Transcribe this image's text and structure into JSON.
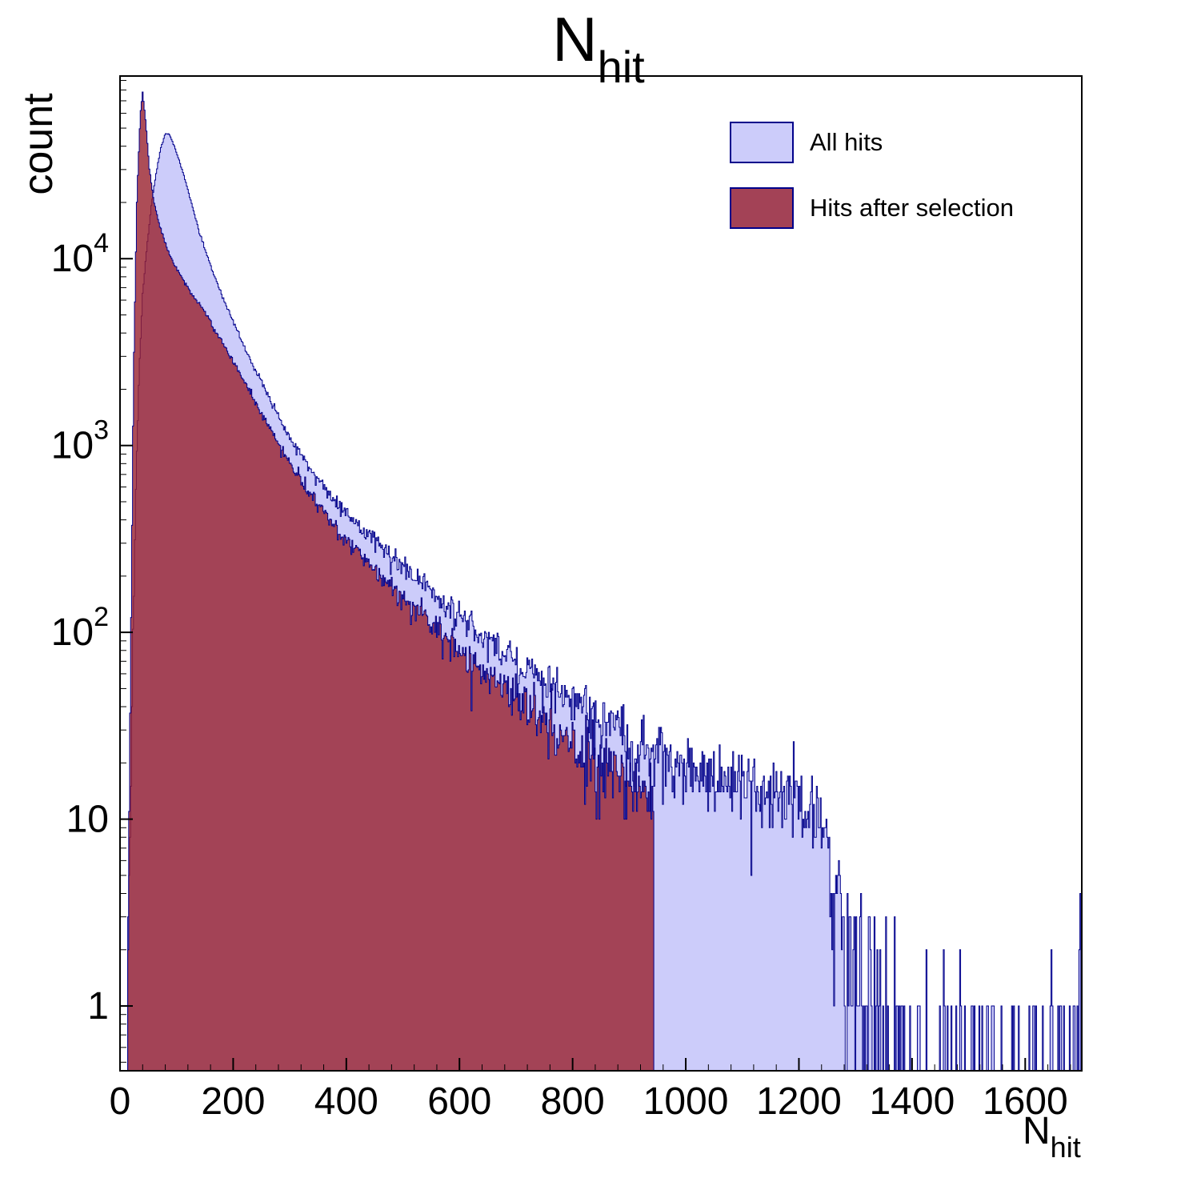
{
  "title": {
    "main": "N",
    "sub": "hit"
  },
  "axes": {
    "x": {
      "label_main": "N",
      "label_sub": "hit",
      "min": 0,
      "max": 1700,
      "major_ticks": [
        0,
        200,
        400,
        600,
        800,
        1000,
        1200,
        1400,
        1600
      ],
      "minor_step": 40
    },
    "y": {
      "label": "count",
      "scale": "log",
      "min": 0.45,
      "max": 95000,
      "major_tick_values": [
        1,
        10,
        100,
        1000,
        10000
      ],
      "tick_labels": [
        {
          "text": "1",
          "exp": ""
        },
        {
          "text": "10",
          "exp": ""
        },
        {
          "text": "10",
          "exp": "2"
        },
        {
          "text": "10",
          "exp": "3"
        },
        {
          "text": "10",
          "exp": "4"
        }
      ]
    }
  },
  "legend": {
    "items": [
      {
        "label": "All hits",
        "color": "#ccccfa",
        "border": "#00008b"
      },
      {
        "label": "Hits after selection",
        "color": "#a34256",
        "border": "#00008b"
      }
    ]
  },
  "chart_data": {
    "type": "area",
    "style": "step-histogram",
    "y_scale": "log",
    "bin_width": 1.7,
    "noise_seed": 1337,
    "x_range": [
      0,
      1700
    ],
    "series": [
      {
        "name": "All hits",
        "fill": "#ccccfa",
        "stroke": "#00008b",
        "x_cut": 1700,
        "envelope_points": [
          [
            10,
            0.4
          ],
          [
            16,
            3
          ],
          [
            22,
            60
          ],
          [
            28,
            600
          ],
          [
            34,
            2500
          ],
          [
            40,
            6500
          ],
          [
            48,
            12000
          ],
          [
            56,
            20000
          ],
          [
            64,
            29000
          ],
          [
            72,
            39000
          ],
          [
            80,
            47000
          ],
          [
            88,
            46000
          ],
          [
            96,
            40000
          ],
          [
            110,
            30000
          ],
          [
            125,
            20500
          ],
          [
            140,
            14000
          ],
          [
            160,
            9200
          ],
          [
            180,
            6400
          ],
          [
            200,
            4600
          ],
          [
            225,
            3100
          ],
          [
            250,
            2200
          ],
          [
            275,
            1550
          ],
          [
            300,
            1120
          ],
          [
            330,
            800
          ],
          [
            360,
            600
          ],
          [
            400,
            430
          ],
          [
            440,
            330
          ],
          [
            480,
            255
          ],
          [
            520,
            200
          ],
          [
            560,
            158
          ],
          [
            600,
            124
          ],
          [
            650,
            92
          ],
          [
            700,
            70
          ],
          [
            750,
            54
          ],
          [
            800,
            42
          ],
          [
            850,
            34
          ],
          [
            900,
            28
          ],
          [
            950,
            24
          ],
          [
            1000,
            20
          ],
          [
            1050,
            17
          ],
          [
            1100,
            16
          ],
          [
            1150,
            15
          ],
          [
            1200,
            13
          ],
          [
            1240,
            10
          ],
          [
            1260,
            5
          ],
          [
            1280,
            3
          ],
          [
            1300,
            1.8
          ],
          [
            1330,
            1.0
          ],
          [
            1360,
            0.6
          ],
          [
            1400,
            0.45
          ],
          [
            1450,
            0.3
          ],
          [
            1500,
            0.25
          ],
          [
            1550,
            0.3
          ],
          [
            1600,
            0.2
          ],
          [
            1650,
            0.2
          ],
          [
            1680,
            0.3
          ],
          [
            1698,
            1.6
          ]
        ]
      },
      {
        "name": "Hits after selection",
        "fill": "rgba(153,32,45,0.8)",
        "stroke": "#00008b",
        "x_cut": 944,
        "envelope_points": [
          [
            12,
            0.5
          ],
          [
            18,
            40
          ],
          [
            24,
            2500
          ],
          [
            30,
            22000
          ],
          [
            36,
            60000
          ],
          [
            40,
            78000
          ],
          [
            46,
            52000
          ],
          [
            52,
            30000
          ],
          [
            60,
            20000
          ],
          [
            70,
            15000
          ],
          [
            85,
            11000
          ],
          [
            100,
            8800
          ],
          [
            120,
            7000
          ],
          [
            150,
            5200
          ],
          [
            180,
            3600
          ],
          [
            200,
            2800
          ],
          [
            250,
            1500
          ],
          [
            300,
            800
          ],
          [
            350,
            480
          ],
          [
            400,
            310
          ],
          [
            450,
            215
          ],
          [
            500,
            155
          ],
          [
            550,
            112
          ],
          [
            600,
            82
          ],
          [
            650,
            60
          ],
          [
            700,
            46
          ],
          [
            750,
            34
          ],
          [
            800,
            26
          ],
          [
            850,
            20
          ],
          [
            900,
            16
          ],
          [
            944,
            13
          ]
        ]
      }
    ]
  }
}
